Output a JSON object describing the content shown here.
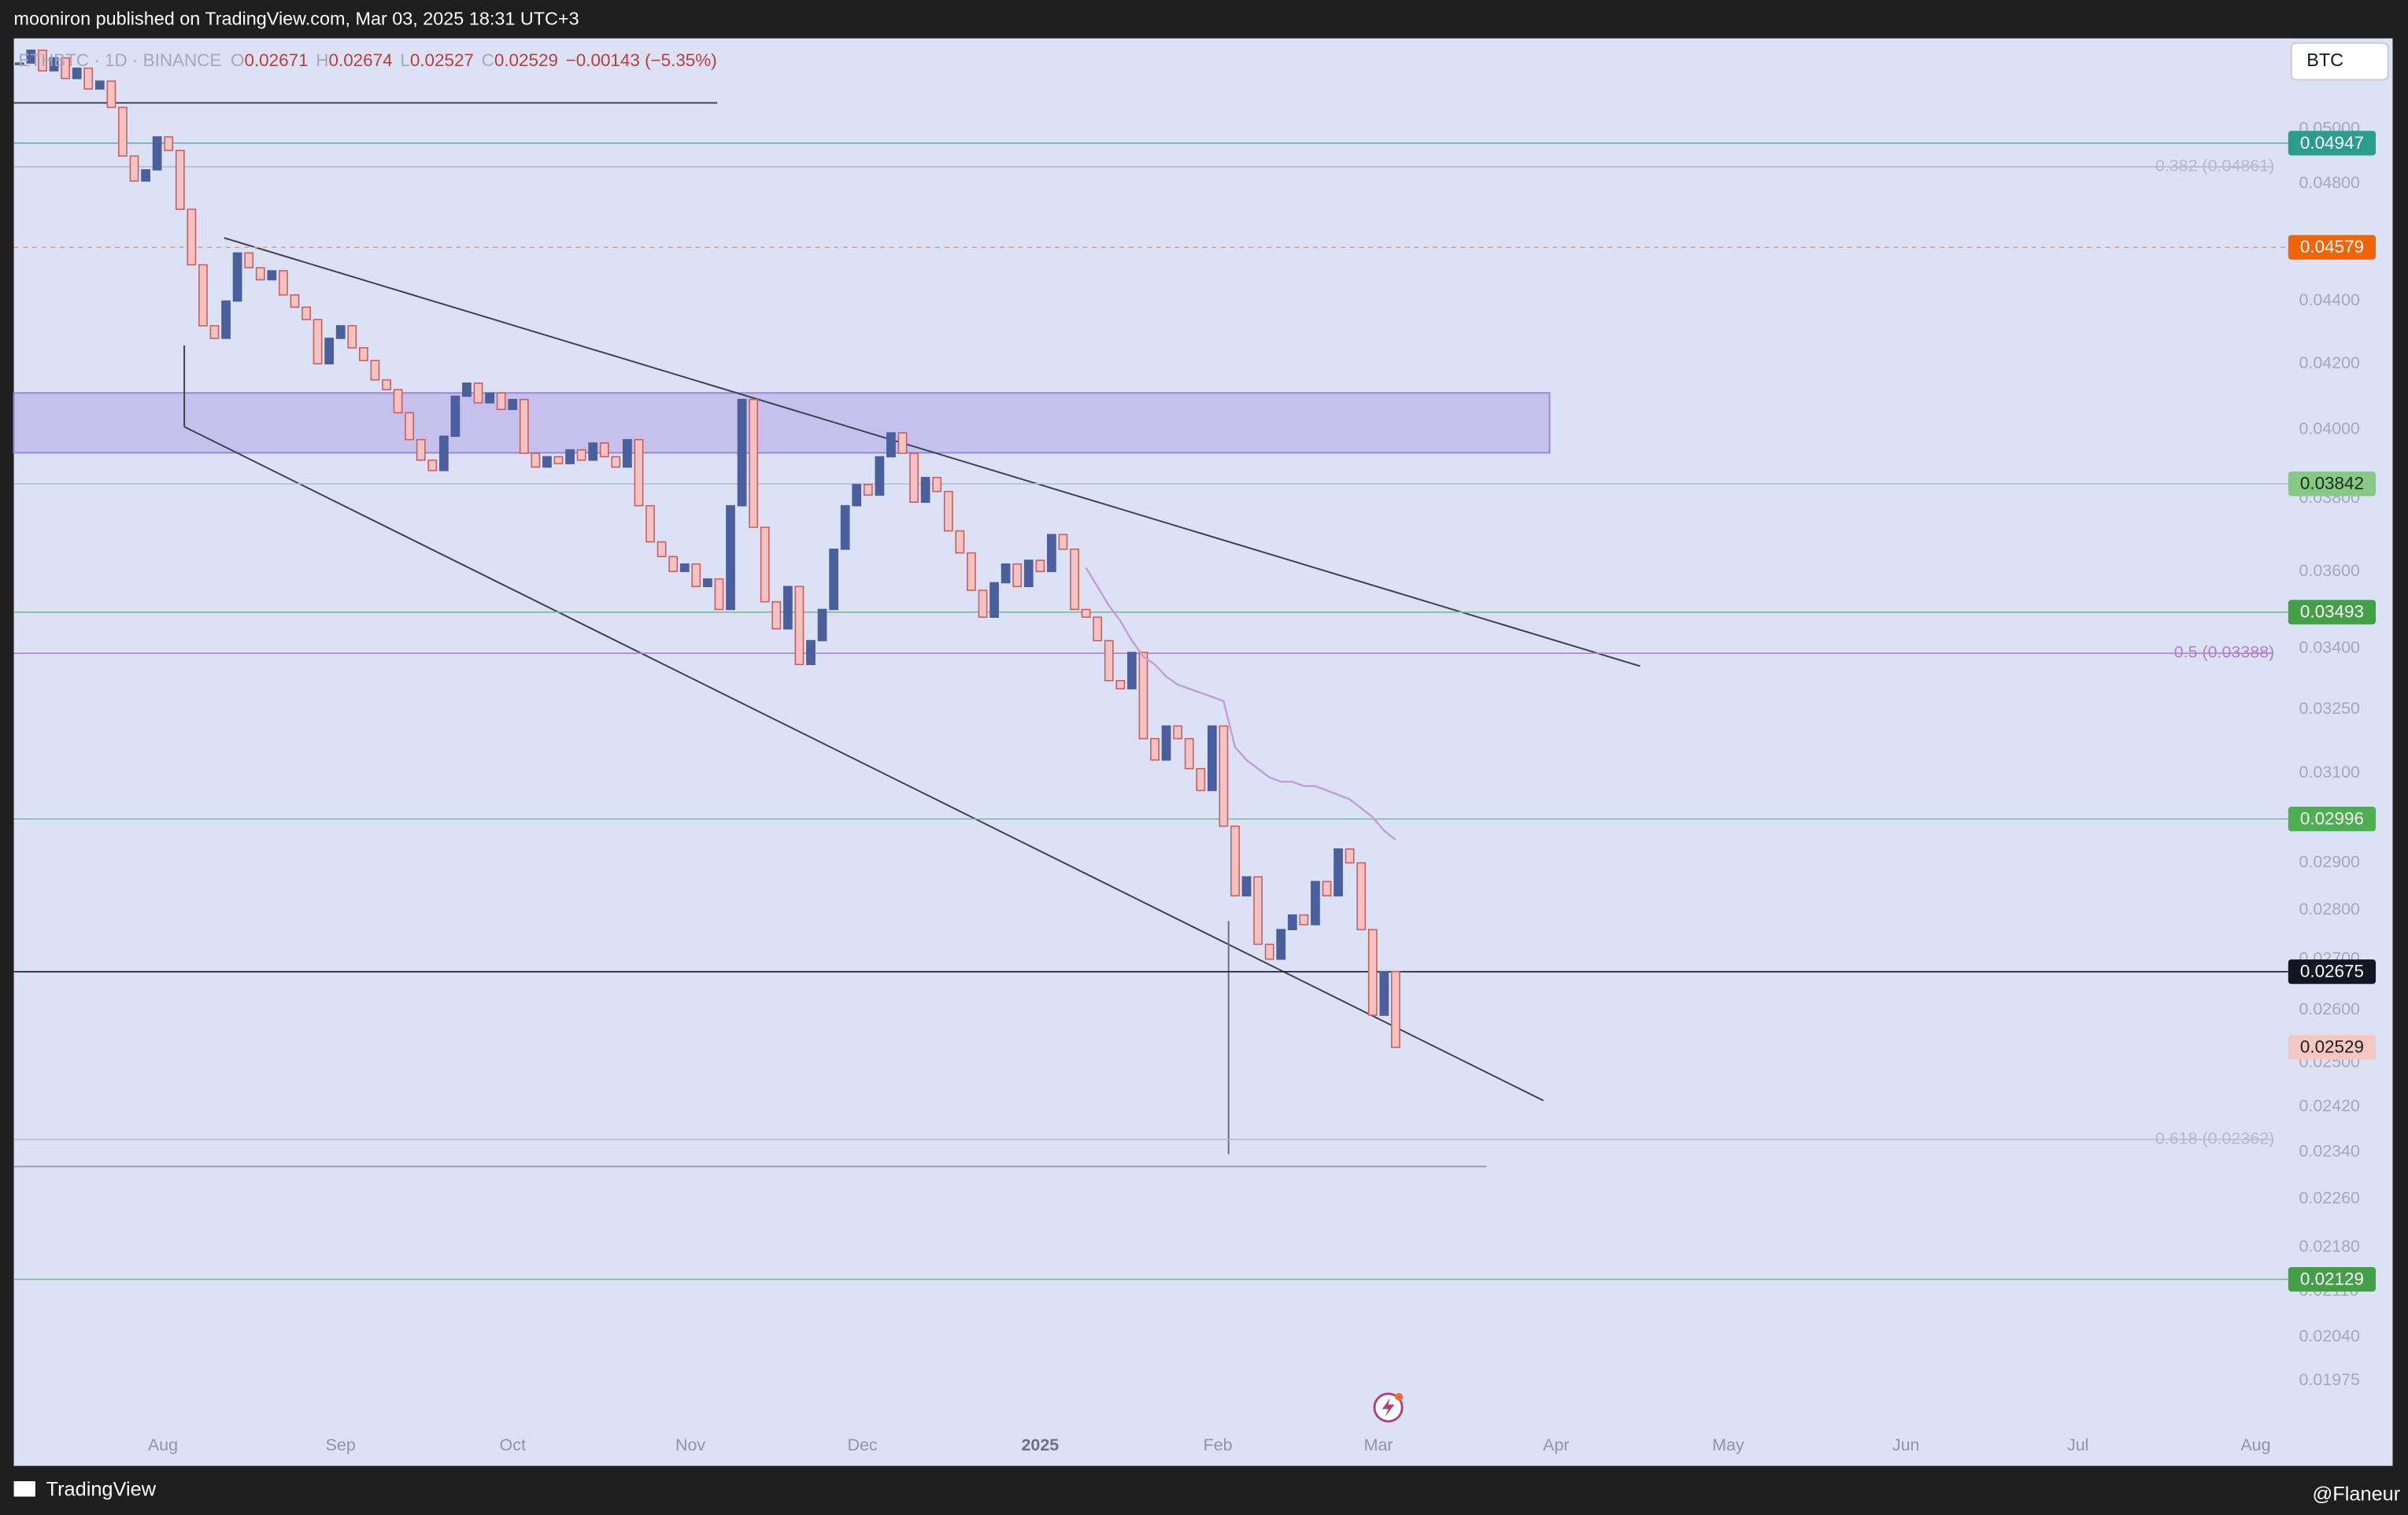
{
  "header": {
    "publisher": "mooniron published on TradingView.com, Mar 03, 2025 18:31 UTC+3",
    "compare_button": "BTC"
  },
  "legend": {
    "symbol": "ETHBTC · 1D · BINANCE",
    "items": [
      {
        "letter": "O",
        "value": 0.02671
      },
      {
        "letter": "H",
        "value": 0.02674
      },
      {
        "letter": "L",
        "value": 0.02527
      },
      {
        "letter": "C",
        "value": 0.02529
      }
    ],
    "change": "−0.00143 (−5.35%)"
  },
  "chart_data": {
    "type": "candlestick",
    "log_scale": true,
    "up_color": "#4a5f9c",
    "down_color": "#f3c3c3",
    "down_stroke": "#d05a5a",
    "values": [
      0.0525,
      0.053,
      0.0522,
      0.0527,
      0.0519,
      0.0523,
      0.0515,
      0.0518,
      0.0508,
      0.049,
      0.0481,
      0.0485,
      0.0497,
      0.0492,
      0.0471,
      0.0452,
      0.0432,
      0.0428,
      0.044,
      0.0456,
      0.0451,
      0.0447,
      0.045,
      0.0442,
      0.0438,
      0.0434,
      0.042,
      0.0428,
      0.0432,
      0.0425,
      0.0421,
      0.0415,
      0.0412,
      0.0405,
      0.0397,
      0.0391,
      0.0388,
      0.0398,
      0.041,
      0.0414,
      0.0408,
      0.0411,
      0.0406,
      0.0409,
      0.0393,
      0.0389,
      0.0392,
      0.039,
      0.0394,
      0.0391,
      0.0396,
      0.0392,
      0.0389,
      0.0397,
      0.0378,
      0.0368,
      0.0364,
      0.036,
      0.0362,
      0.0356,
      0.0358,
      0.035,
      0.0378,
      0.0409,
      0.0372,
      0.0352,
      0.0345,
      0.0356,
      0.0336,
      0.0342,
      0.035,
      0.0366,
      0.0378,
      0.0384,
      0.0381,
      0.0392,
      0.0399,
      0.0393,
      0.0379,
      0.0386,
      0.0382,
      0.0371,
      0.0365,
      0.0355,
      0.0348,
      0.0357,
      0.0362,
      0.0356,
      0.0363,
      0.036,
      0.037,
      0.0366,
      0.035,
      0.0348,
      0.0342,
      0.0332,
      0.033,
      0.0339,
      0.0318,
      0.0313,
      0.0321,
      0.0318,
      0.0311,
      0.0306,
      0.0321,
      0.0298,
      0.0283,
      0.0287,
      0.0273,
      0.027,
      0.0276,
      0.0279,
      0.0277,
      0.0286,
      0.0283,
      0.0293,
      0.029,
      0.0276,
      0.0259,
      0.02675,
      0.02529
    ],
    "moving_average": {
      "color": "#c49ad8",
      "values": [
        null,
        null,
        null,
        null,
        null,
        null,
        null,
        null,
        null,
        null,
        null,
        null,
        null,
        null,
        null,
        null,
        null,
        null,
        null,
        null,
        null,
        null,
        null,
        null,
        null,
        null,
        null,
        null,
        null,
        null,
        null,
        null,
        null,
        null,
        null,
        null,
        null,
        null,
        null,
        null,
        null,
        null,
        null,
        null,
        null,
        null,
        null,
        null,
        null,
        null,
        null,
        null,
        null,
        null,
        null,
        null,
        null,
        null,
        null,
        null,
        null,
        null,
        null,
        null,
        null,
        null,
        null,
        null,
        null,
        null,
        null,
        null,
        null,
        null,
        null,
        null,
        null,
        null,
        null,
        null,
        null,
        null,
        null,
        null,
        null,
        null,
        null,
        null,
        null,
        null,
        null,
        null,
        null,
        0.0361,
        0.0356,
        0.0351,
        0.0347,
        0.0342,
        0.0338,
        0.0336,
        0.0333,
        0.0331,
        0.033,
        0.0329,
        0.0328,
        0.0327,
        0.0316,
        0.0313,
        0.0311,
        0.0309,
        0.0308,
        0.0308,
        0.0307,
        0.0307,
        0.0306,
        0.0305,
        0.0304,
        0.0302,
        0.03,
        0.0297,
        0.0295
      ]
    },
    "xlim": [
      0,
      197
    ],
    "xticks": [
      {
        "value": 13,
        "label": "Aug"
      },
      {
        "value": 28.5,
        "label": "Sep"
      },
      {
        "value": 43.5,
        "label": "Oct"
      },
      {
        "value": 59,
        "label": "Nov"
      },
      {
        "value": 74,
        "label": "Dec"
      },
      {
        "value": 89.5,
        "label": "2025"
      },
      {
        "value": 105,
        "label": "Feb"
      },
      {
        "value": 119,
        "label": "Mar"
      },
      {
        "value": 134.5,
        "label": "Apr"
      },
      {
        "value": 149.5,
        "label": "May"
      },
      {
        "value": 165,
        "label": "Jun"
      },
      {
        "value": 180,
        "label": "Jul"
      },
      {
        "value": 195.5,
        "label": "Aug"
      }
    ],
    "ylim": [
      0.01903,
      0.05347
    ],
    "yticks": [
      {
        "value": 0.05,
        "label": "0.05000"
      },
      {
        "value": 0.048,
        "label": "0.04800"
      },
      {
        "value": 0.044,
        "label": "0.04400"
      },
      {
        "value": 0.042,
        "label": "0.04200"
      },
      {
        "value": 0.04,
        "label": "0.04000"
      },
      {
        "value": 0.038,
        "label": "0.03800"
      },
      {
        "value": 0.036,
        "label": "0.03600"
      },
      {
        "value": 0.034,
        "label": "0.03400"
      },
      {
        "value": 0.0325,
        "label": "0.03250"
      },
      {
        "value": 0.031,
        "label": "0.03100"
      },
      {
        "value": 0.029,
        "label": "0.02900"
      },
      {
        "value": 0.028,
        "label": "0.02800"
      },
      {
        "value": 0.027,
        "label": "0.02700"
      },
      {
        "value": 0.026,
        "label": "0.02600"
      },
      {
        "value": 0.025,
        "label": "0.02500"
      },
      {
        "value": 0.0242,
        "label": "0.02420"
      },
      {
        "value": 0.0234,
        "label": "0.02340"
      },
      {
        "value": 0.0226,
        "label": "0.02260"
      },
      {
        "value": 0.0218,
        "label": "0.02180"
      },
      {
        "value": 0.0211,
        "label": "0.02110"
      },
      {
        "value": 0.0204,
        "label": "0.02040"
      },
      0.01975
    ],
    "fib_levels": [
      {
        "value": 0.04861,
        "label": "0.382 (0.04861)",
        "color": "#b3bacb"
      },
      {
        "value": 0.03388,
        "label": "0.5 (0.03388)",
        "color": "#b27fcb"
      },
      {
        "value": 0.02362,
        "label": "0.618 (0.02362)",
        "color": "#b3bacb"
      }
    ],
    "price_lines": [
      {
        "value": 0.04947,
        "color": "#2a9d8f",
        "line_color": "#5aaab0",
        "text_color": "#ffffff",
        "style": "solid"
      },
      {
        "value": 0.04579,
        "color": "#f0640a",
        "line_color": "#e39a8a",
        "text_color": "#ffffff",
        "style": "dashed"
      },
      {
        "value": 0.03842,
        "color": "#86c986",
        "line_color": "#aac4bc",
        "text_color": "#1e2a1e",
        "style": "solid"
      },
      {
        "value": 0.03493,
        "color": "#43a047",
        "line_color": "#7fb98f",
        "text_color": "#ffffff",
        "style": "solid"
      },
      {
        "value": 0.02996,
        "color": "#4caf50",
        "line_color": "#7fb98f",
        "text_color": "#ffffff",
        "style": "solid"
      },
      {
        "value": 0.02675,
        "color": "#131722",
        "line_color": "#131722",
        "text_color": "#ffffff",
        "style": "solid"
      },
      {
        "value": 0.02529,
        "color": "#f4c7c3",
        "line_color": "none",
        "text_color": "#1e1e1e",
        "style": "none"
      },
      {
        "value": 0.02129,
        "color": "#43a047",
        "line_color": "#7fb98f",
        "text_color": "#ffffff",
        "style": "solid"
      }
    ]
  },
  "footer": {
    "brand": "TradingView",
    "author": "@Flaneur"
  }
}
